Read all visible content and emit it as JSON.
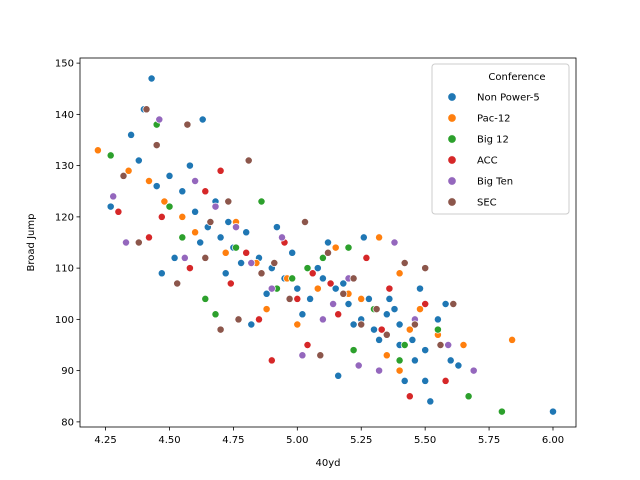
{
  "chart_data": {
    "type": "scatter",
    "title": "",
    "xlabel": "40yd",
    "ylabel": "Broad Jump",
    "xlim": [
      4.15,
      6.09
    ],
    "ylim": [
      79,
      151
    ],
    "xticks": [
      4.25,
      4.5,
      4.75,
      5.0,
      5.25,
      5.5,
      5.75,
      6.0
    ],
    "yticks": [
      80,
      90,
      100,
      110,
      120,
      130,
      140,
      150
    ],
    "xtick_labels": [
      "4.25",
      "4.50",
      "4.75",
      "5.00",
      "5.25",
      "5.50",
      "5.75",
      "6.00"
    ],
    "ytick_labels": [
      "80",
      "90",
      "100",
      "110",
      "120",
      "130",
      "140",
      "150"
    ],
    "grid": false,
    "legend": {
      "title": "Conference",
      "placement": "top-right",
      "entries": [
        "Non Power-5",
        "Pac-12",
        "Big 12",
        "ACC",
        "Big Ten",
        "SEC"
      ]
    },
    "series": [
      {
        "name": "Non Power-5",
        "color": "#1f77b4",
        "points": [
          [
            4.43,
            147
          ],
          [
            4.4,
            141
          ],
          [
            4.27,
            122
          ],
          [
            4.35,
            136
          ],
          [
            4.5,
            128
          ],
          [
            4.55,
            125
          ],
          [
            4.6,
            121
          ],
          [
            4.65,
            118
          ],
          [
            4.7,
            116
          ],
          [
            4.75,
            114
          ],
          [
            4.8,
            117
          ],
          [
            4.85,
            112
          ],
          [
            4.9,
            110
          ],
          [
            4.95,
            108
          ],
          [
            5.0,
            106
          ],
          [
            5.05,
            104
          ],
          [
            5.1,
            108
          ],
          [
            5.15,
            106
          ],
          [
            5.2,
            103
          ],
          [
            5.25,
            100
          ],
          [
            5.3,
            98
          ],
          [
            5.35,
            101
          ],
          [
            5.4,
            99
          ],
          [
            5.45,
            96
          ],
          [
            5.5,
            94
          ],
          [
            5.55,
            100
          ],
          [
            5.58,
            103
          ],
          [
            5.6,
            92
          ],
          [
            5.63,
            91
          ],
          [
            6.0,
            82
          ],
          [
            5.52,
            84
          ],
          [
            5.16,
            89
          ],
          [
            4.82,
            99
          ],
          [
            4.47,
            109
          ],
          [
            4.52,
            112
          ],
          [
            4.58,
            130
          ],
          [
            4.63,
            139
          ],
          [
            4.68,
            123
          ],
          [
            4.73,
            119
          ],
          [
            4.78,
            111
          ],
          [
            4.88,
            105
          ],
          [
            4.98,
            113
          ],
          [
            5.08,
            110
          ],
          [
            5.18,
            107
          ],
          [
            5.28,
            104
          ],
          [
            5.38,
            102
          ],
          [
            5.48,
            106
          ],
          [
            5.26,
            116
          ],
          [
            5.42,
            88
          ],
          [
            5.5,
            88
          ],
          [
            4.38,
            131
          ],
          [
            4.45,
            126
          ],
          [
            4.62,
            115
          ],
          [
            4.72,
            109
          ],
          [
            4.92,
            118
          ],
          [
            5.02,
            101
          ],
          [
            5.12,
            115
          ],
          [
            5.22,
            99
          ],
          [
            5.32,
            96
          ],
          [
            5.46,
            92
          ],
          [
            5.36,
            104
          ],
          [
            5.4,
            95
          ]
        ]
      },
      {
        "name": "Pac-12",
        "color": "#ff7f0e",
        "points": [
          [
            4.22,
            133
          ],
          [
            4.34,
            129
          ],
          [
            4.48,
            123
          ],
          [
            4.6,
            117
          ],
          [
            4.72,
            113
          ],
          [
            4.84,
            111
          ],
          [
            4.96,
            108
          ],
          [
            5.08,
            106
          ],
          [
            5.2,
            105
          ],
          [
            5.32,
            116
          ],
          [
            5.4,
            109
          ],
          [
            5.48,
            102
          ],
          [
            5.55,
            97
          ],
          [
            5.65,
            95
          ],
          [
            5.84,
            96
          ],
          [
            5.4,
            90
          ],
          [
            4.55,
            120
          ],
          [
            4.76,
            119
          ],
          [
            5.0,
            99
          ],
          [
            5.15,
            114
          ],
          [
            5.25,
            104
          ],
          [
            5.44,
            98
          ],
          [
            5.35,
            93
          ],
          [
            4.88,
            102
          ],
          [
            4.42,
            127
          ]
        ]
      },
      {
        "name": "Big 12",
        "color": "#2ca02c",
        "points": [
          [
            4.27,
            132
          ],
          [
            4.45,
            138
          ],
          [
            4.55,
            116
          ],
          [
            4.64,
            104
          ],
          [
            4.76,
            114
          ],
          [
            4.86,
            123
          ],
          [
            4.98,
            108
          ],
          [
            5.1,
            112
          ],
          [
            5.2,
            114
          ],
          [
            5.3,
            102
          ],
          [
            5.42,
            95
          ],
          [
            5.55,
            98
          ],
          [
            5.67,
            85
          ],
          [
            5.8,
            82
          ],
          [
            5.4,
            92
          ],
          [
            4.68,
            101
          ],
          [
            5.04,
            110
          ],
          [
            4.5,
            122
          ],
          [
            5.22,
            94
          ],
          [
            4.92,
            106
          ]
        ]
      },
      {
        "name": "ACC",
        "color": "#d62728",
        "points": [
          [
            4.3,
            121
          ],
          [
            4.42,
            116
          ],
          [
            4.58,
            110
          ],
          [
            4.7,
            129
          ],
          [
            4.8,
            113
          ],
          [
            4.9,
            92
          ],
          [
            5.0,
            104
          ],
          [
            5.04,
            95
          ],
          [
            5.13,
            107
          ],
          [
            5.27,
            112
          ],
          [
            5.36,
            106
          ],
          [
            5.44,
            85
          ],
          [
            5.58,
            88
          ],
          [
            4.47,
            120
          ],
          [
            4.64,
            125
          ],
          [
            4.85,
            100
          ],
          [
            5.16,
            101
          ],
          [
            5.33,
            98
          ],
          [
            5.5,
            103
          ],
          [
            4.95,
            115
          ],
          [
            4.74,
            107
          ],
          [
            5.06,
            109
          ]
        ]
      },
      {
        "name": "Big Ten",
        "color": "#9467bd",
        "points": [
          [
            4.28,
            124
          ],
          [
            4.46,
            139
          ],
          [
            4.56,
            112
          ],
          [
            4.68,
            122
          ],
          [
            4.82,
            111
          ],
          [
            4.94,
            116
          ],
          [
            5.02,
            93
          ],
          [
            5.14,
            103
          ],
          [
            5.24,
            91
          ],
          [
            5.38,
            115
          ],
          [
            5.46,
            100
          ],
          [
            5.59,
            95
          ],
          [
            5.69,
            90
          ],
          [
            4.33,
            115
          ],
          [
            4.6,
            127
          ],
          [
            4.9,
            106
          ],
          [
            5.2,
            108
          ],
          [
            5.32,
            90
          ],
          [
            5.1,
            100
          ],
          [
            4.76,
            118
          ]
        ]
      },
      {
        "name": "SEC",
        "color": "#8c564b",
        "points": [
          [
            4.32,
            128
          ],
          [
            4.41,
            141
          ],
          [
            4.57,
            138
          ],
          [
            4.66,
            119
          ],
          [
            4.7,
            98
          ],
          [
            4.77,
            100
          ],
          [
            4.81,
            131
          ],
          [
            4.91,
            111
          ],
          [
            5.03,
            119
          ],
          [
            5.09,
            93
          ],
          [
            5.22,
            108
          ],
          [
            5.31,
            102
          ],
          [
            5.42,
            111
          ],
          [
            5.5,
            110
          ],
          [
            5.61,
            103
          ],
          [
            4.38,
            115
          ],
          [
            4.53,
            107
          ],
          [
            4.73,
            123
          ],
          [
            4.86,
            109
          ],
          [
            5.12,
            113
          ],
          [
            5.35,
            97
          ],
          [
            5.56,
            95
          ],
          [
            4.97,
            104
          ],
          [
            5.25,
            99
          ],
          [
            4.45,
            134
          ],
          [
            4.64,
            112
          ],
          [
            5.18,
            105
          ],
          [
            5.46,
            99
          ]
        ]
      }
    ]
  }
}
